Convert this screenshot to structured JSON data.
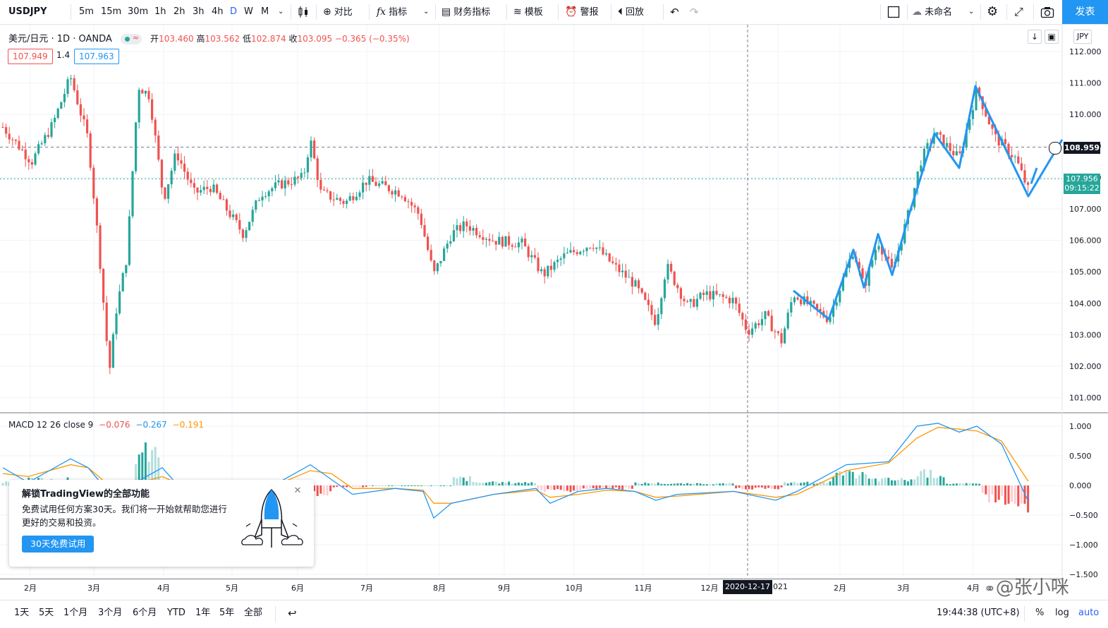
{
  "toolbar": {
    "symbol": "USDJPY",
    "intervals": [
      "5m",
      "15m",
      "30m",
      "1h",
      "2h",
      "3h",
      "4h",
      "D",
      "W",
      "M"
    ],
    "active_interval": "D",
    "compare": "对比",
    "indicators": "指标",
    "financials": "财务指标",
    "templates": "模板",
    "alert": "警报",
    "replay": "回放",
    "layout_name": "未命名",
    "publish": "发表"
  },
  "legend": {
    "title": "美元/日元 · 1D · OANDA",
    "open_label": "开",
    "open": "103.460",
    "high_label": "高",
    "high": "103.562",
    "low_label": "低",
    "low": "102.874",
    "close_label": "收",
    "close": "103.095",
    "change": "−0.365 (−0.35%)",
    "bid": "107.949",
    "spread": "1.4",
    "ask": "107.963"
  },
  "price_axis": {
    "currency": "JPY",
    "marker_price": "108.959",
    "last_price": "107.956",
    "countdown": "09:15:22"
  },
  "macd_legend": {
    "label": "MACD 12 26 close 9",
    "hist": "−0.076",
    "macd": "−0.267",
    "signal": "−0.191"
  },
  "crosshair_date": "2020-12-17",
  "promo": {
    "title": "解锁TradingView的全部功能",
    "desc": "免费试用任何方案30天。我们将一开始就帮助您进行更好的交易和投资。",
    "button": "30天免费试用"
  },
  "bottombar": {
    "ranges": [
      "1天",
      "5天",
      "1个月",
      "3个月",
      "6个月",
      "YTD",
      "1年",
      "5年",
      "全部"
    ],
    "time": "19:44:38 (UTC+8)",
    "percent": "%",
    "log": "log",
    "auto": "auto"
  },
  "watermark": "@张小咪",
  "colors": {
    "up": "#26a69a",
    "down": "#ef5350",
    "drawing": "#2196f3",
    "macd": "#2196f3",
    "signal": "#ff9800"
  },
  "chart_data": [
    {
      "type": "candlestick",
      "title": "美元/日元 · 1D · OANDA",
      "x_ticks": [
        "2月",
        "3月",
        "4月",
        "5月",
        "6月",
        "7月",
        "8月",
        "9月",
        "10月",
        "11月",
        "12月",
        "2021",
        "2月",
        "3月",
        "4月"
      ],
      "y_ticks": [
        "112.000",
        "111.000",
        "110.000",
        "109.000",
        "108.000",
        "107.000",
        "106.000",
        "105.000",
        "104.000",
        "103.000",
        "102.000",
        "101.000"
      ],
      "ylim": [
        100.9,
        112.2
      ],
      "series": [
        {
          "name": "close",
          "months": [
            "2020-01",
            "2020-02",
            "2020-03a",
            "2020-03b",
            "2020-04",
            "2020-05",
            "2020-06",
            "2020-07",
            "2020-08",
            "2020-09",
            "2020-10",
            "2020-11",
            "2020-12",
            "2021-01",
            "2021-02",
            "2021-03",
            "2021-04"
          ],
          "values": [
            109.5,
            110.0,
            102.0,
            111.0,
            107.5,
            107.0,
            108.0,
            105.5,
            105.8,
            105.5,
            104.5,
            103.8,
            103.3,
            104.0,
            106.2,
            110.2,
            107.9
          ]
        }
      ],
      "annotations": {
        "horizontal_line": 108.959,
        "last_price_line": 107.956
      },
      "grid": true
    },
    {
      "type": "line",
      "title": "MACD 12 26 close 9",
      "y_ticks": [
        "1.000",
        "0.500",
        "0.000",
        "−0.500",
        "−1.000",
        "−1.500"
      ],
      "ylim": [
        -1.55,
        1.1
      ],
      "series": [
        {
          "name": "MACD",
          "values": [
            0.3,
            0.45,
            -0.2,
            0.1,
            -0.15,
            -0.05,
            -0.55,
            -0.15,
            -0.05,
            -0.1,
            -0.3,
            -0.2,
            -0.25,
            0.3,
            0.5,
            1.05,
            0.95,
            -0.27
          ]
        },
        {
          "name": "Signal",
          "values": [
            0.2,
            0.35,
            -0.1,
            0.05,
            -0.1,
            -0.05,
            -0.35,
            -0.15,
            -0.08,
            -0.1,
            -0.25,
            -0.2,
            -0.22,
            0.2,
            0.42,
            0.95,
            0.9,
            0.07
          ]
        }
      ],
      "grid": true
    }
  ]
}
